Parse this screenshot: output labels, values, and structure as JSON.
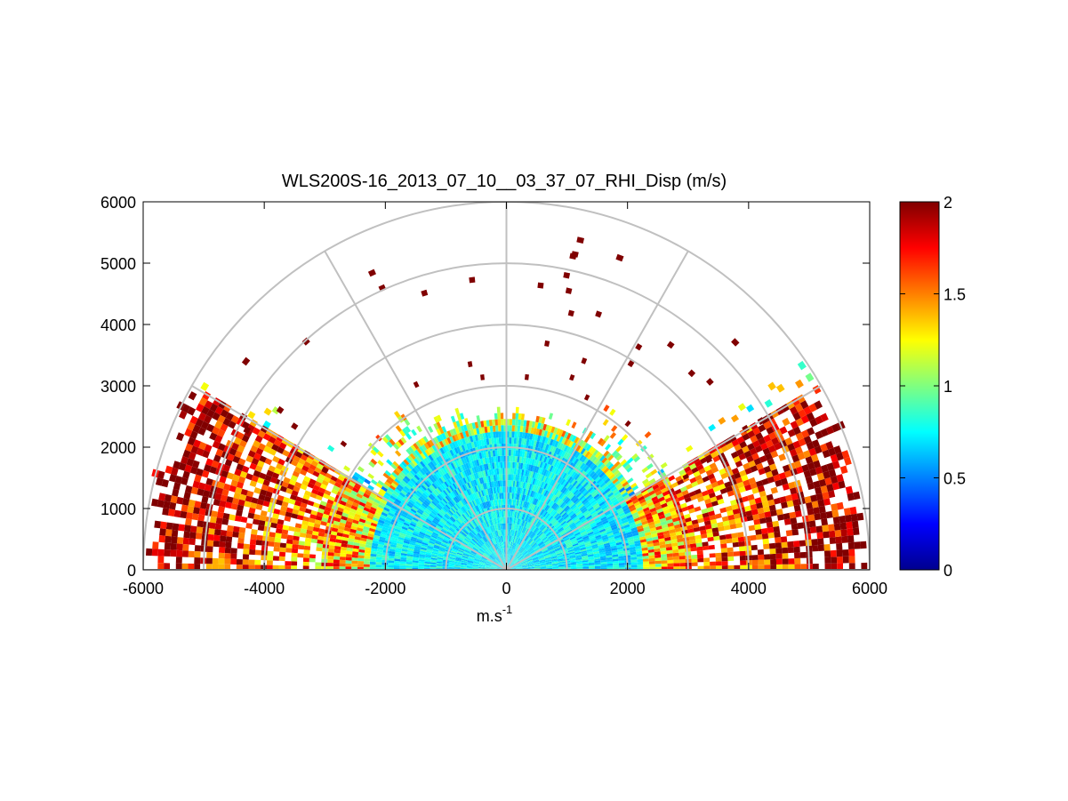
{
  "chart_data": {
    "type": "heatmap",
    "subtype": "polar-rhi-scan",
    "title": "WLS200S-16_2013_07_10__03_37_07_RHI_Disp (m/s)",
    "xlabel": {
      "base": "m.s",
      "superscript": "-1"
    },
    "ylabel": "",
    "xlim": [
      -6000,
      6000
    ],
    "ylim": [
      0,
      6000
    ],
    "xticks": [
      -6000,
      -4000,
      -2000,
      0,
      2000,
      4000,
      6000
    ],
    "yticks": [
      0,
      1000,
      2000,
      3000,
      4000,
      5000,
      6000
    ],
    "range_rings": [
      1000,
      2000,
      3000,
      4000,
      5000,
      6000
    ],
    "spokes_deg": [
      0,
      30,
      60,
      90,
      120,
      150,
      180
    ],
    "colorbar": {
      "colormap": "jet",
      "min": 0,
      "max": 2,
      "ticks": [
        0,
        0.5,
        1,
        1.5,
        2
      ],
      "tick_labels": [
        "0",
        "0.5",
        "1",
        "1.5",
        "2"
      ]
    },
    "data_description": "Dispersion of radial velocity (m/s) along RHI scan; values mostly 0.5-0.9 near origin, higher (1.5-2) at long ranges at low elevation angles"
  }
}
